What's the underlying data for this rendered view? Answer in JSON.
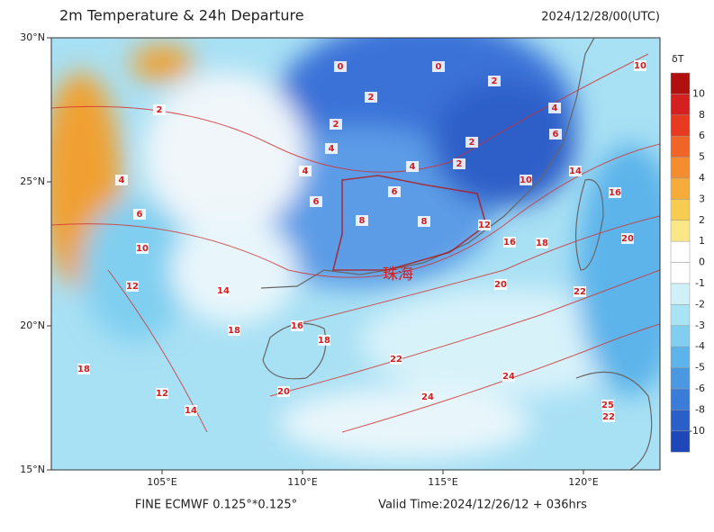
{
  "header": {
    "title": "2m Temperature & 24h Departure",
    "time": "2024/12/28/00(UTC)"
  },
  "axes": {
    "lat_labels": [
      "30°N",
      "25°N",
      "20°N",
      "15°N"
    ],
    "lon_labels": [
      "105°E",
      "110°E",
      "115°E",
      "120°E"
    ]
  },
  "city": "珠海",
  "contour_labels": [
    "0",
    "0",
    "2",
    "2",
    "4",
    "2",
    "6",
    "4",
    "2",
    "4",
    "4",
    "2",
    "6",
    "6",
    "8",
    "8",
    "10",
    "14",
    "16",
    "12",
    "16",
    "18",
    "20",
    "20",
    "22",
    "22",
    "24",
    "24",
    "18",
    "16",
    "20",
    "18",
    "14",
    "12",
    "10",
    "12",
    "14",
    "18",
    "2",
    "6",
    "4",
    "10",
    "25",
    "22"
  ],
  "colorbar": {
    "title": "δT",
    "labels": [
      "10",
      "8",
      "6",
      "5",
      "4",
      "3",
      "2",
      "1",
      "0",
      "-1",
      "-2",
      "-3",
      "-4",
      "-5",
      "-6",
      "-8",
      "-10"
    ],
    "colors": [
      "#b01010",
      "#d42020",
      "#e83a20",
      "#f06428",
      "#f48c30",
      "#f6ac3a",
      "#f8cc50",
      "#fae888",
      "#ffffff",
      "#ffffff",
      "#d0f0f8",
      "#a8e4f4",
      "#80cff0",
      "#5cb4ea",
      "#4a98e2",
      "#3a7cd8",
      "#2a5ec8",
      "#1e48b8"
    ]
  },
  "footer": {
    "model": "FINE ECMWF 0.125°*0.125°",
    "valid": "Valid Time:2024/12/26/12 + 036hrs"
  }
}
